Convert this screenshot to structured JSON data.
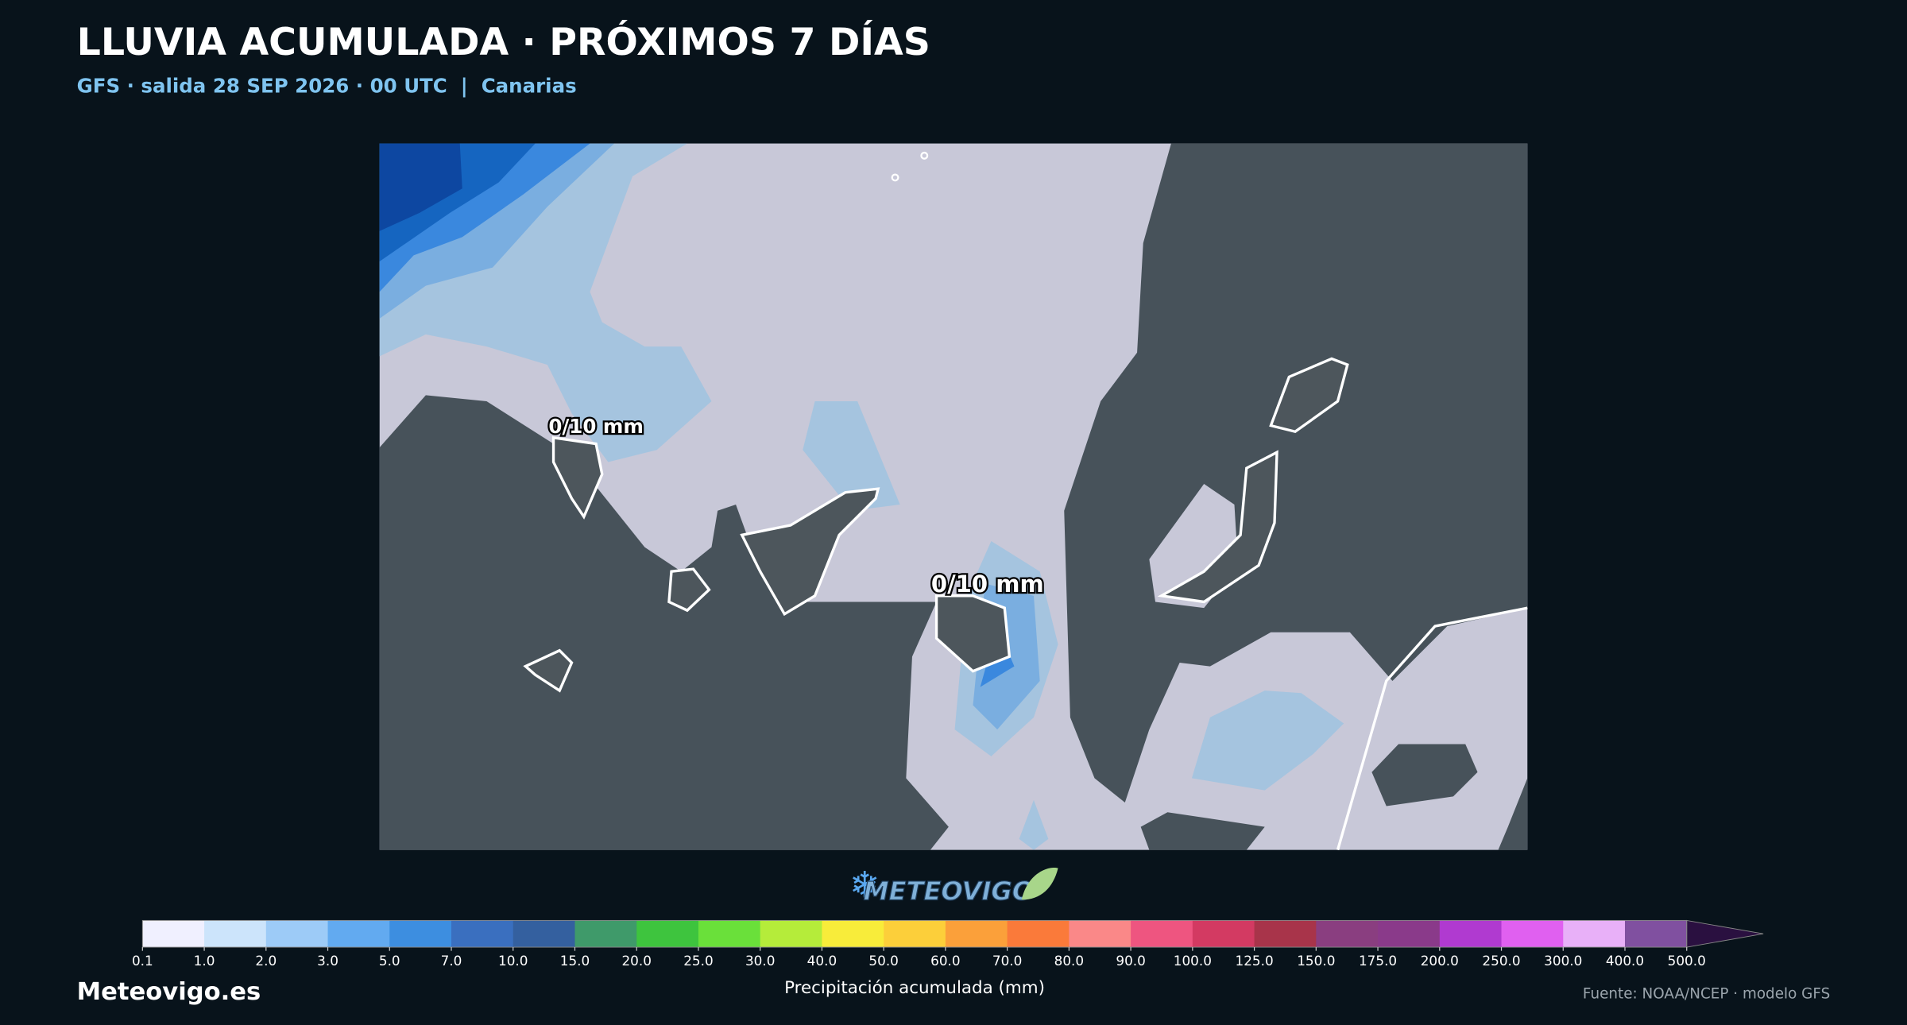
{
  "header": {
    "title": "LLUVIA ACUMULADA · PRÓXIMOS 7 DÍAS",
    "subtitle": "GFS · salida 28 SEP 2026 · 00 UTC  |  Canarias"
  },
  "map": {
    "labels": [
      "0/10 mm",
      "0/10 mm"
    ],
    "logo": "METEOVIGO"
  },
  "colorbar": {
    "label": "Precipitación acumulada (mm)",
    "ticks": [
      0.1,
      {
        "value": 1,
        "label": "1.0"
      },
      {
        "value": 2,
        "label": "2.0"
      },
      {
        "value": 3,
        "label": "3.0"
      },
      {
        "value": 5,
        "label": "5.0"
      },
      {
        "value": 7,
        "label": "7.0"
      },
      {
        "value": 10,
        "label": "10.0"
      },
      {
        "value": 15,
        "label": "15.0"
      },
      {
        "value": 20,
        "label": "20.0"
      },
      {
        "value": 25,
        "label": "25.0"
      },
      {
        "value": 30,
        "label": "30.0"
      },
      {
        "value": 40,
        "label": "40.0"
      },
      {
        "value": 50,
        "label": "50.0"
      },
      {
        "value": 60,
        "label": "60.0"
      },
      {
        "value": 70,
        "label": "70.0"
      },
      {
        "value": 80,
        "label": "80.0"
      },
      {
        "value": 90,
        "label": "90.0"
      },
      {
        "value": 100,
        "label": "100.0"
      },
      {
        "value": 125,
        "label": "125.0"
      },
      {
        "value": 150,
        "label": "150.0"
      },
      {
        "value": 175,
        "label": "175.0"
      },
      {
        "value": 200,
        "label": "200.0"
      },
      {
        "value": 250,
        "label": "250.0"
      },
      {
        "value": 300,
        "label": "300.0"
      },
      {
        "value": 400,
        "label": "400.0"
      },
      {
        "value": 500,
        "label": "500.0"
      }
    ],
    "colors": [
      "#f0f0ff",
      "#cce4fb",
      "#9dcbf7",
      "#62aaf0",
      "#3d8ee0",
      "#3a6fbf",
      "#34609f",
      "#3f9a6a",
      "#3ec43e",
      "#6ae03a",
      "#b5ec3a",
      "#f8ec3a",
      "#fccf3a",
      "#fba03a",
      "#fa7a3a",
      "#fa8888",
      "#ee5580",
      "#d33a62",
      "#a8344a",
      "#8a3e80",
      "#8a3a8a",
      "#b03ad0",
      "#e060f0",
      "#e8b0f8",
      "#8050a0"
    ],
    "extend_color": "#2a1040"
  },
  "footer": {
    "site": "Meteovigo.es",
    "source": "Fuente: NOAA/NCEP · modelo GFS"
  }
}
